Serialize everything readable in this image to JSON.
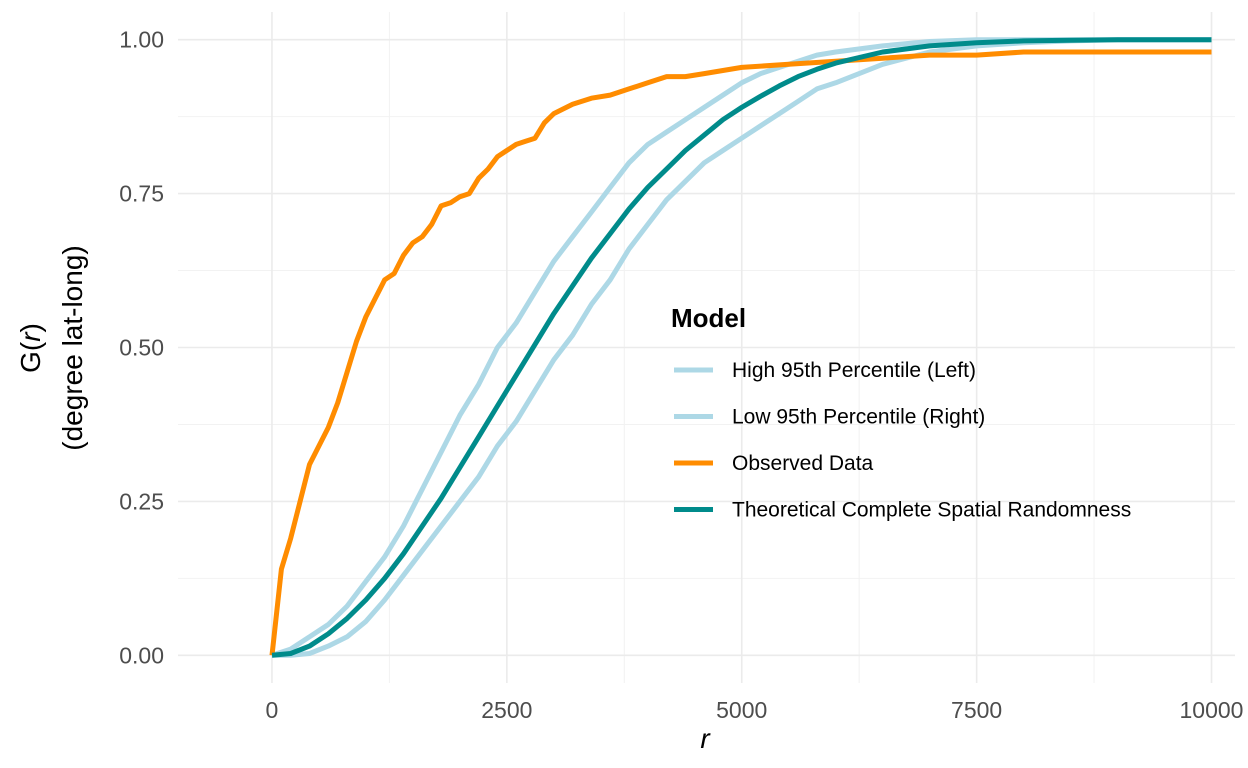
{
  "chart_data": {
    "type": "line",
    "xlabel": "r",
    "ylabel_line1_prefix": "G(",
    "ylabel_line1_var": "r",
    "ylabel_line1_suffix": ")",
    "ylabel_line2": "(degree lat-long)",
    "xlim": [
      -1000,
      10250
    ],
    "ylim": [
      -0.045,
      1.045
    ],
    "x_ticks": [
      0,
      2500,
      5000,
      7500,
      10000
    ],
    "x_tick_labels": [
      "0",
      "2500",
      "5000",
      "7500",
      "10000"
    ],
    "y_ticks": [
      0,
      0.25,
      0.5,
      0.75,
      1.0
    ],
    "y_tick_labels": [
      "0.00",
      "0.25",
      "0.50",
      "0.75",
      "1.00"
    ],
    "grid": true,
    "legend": {
      "title": "Model",
      "placement": "right",
      "entries": [
        {
          "label": "High 95th Percentile (Left)",
          "color": "#add8e6"
        },
        {
          "label": "Low 95th Percentile (Right)",
          "color": "#add8e6"
        },
        {
          "label": "Observed Data",
          "color": "#ff8c00"
        },
        {
          "label": "Theoretical Complete Spatial Randomness",
          "color": "#008b8b"
        }
      ]
    },
    "series": [
      {
        "name": "High 95th Percentile (Left)",
        "color": "#add8e6",
        "x": [
          0,
          200,
          400,
          600,
          800,
          1000,
          1200,
          1400,
          1600,
          1800,
          2000,
          2200,
          2400,
          2600,
          2800,
          3000,
          3200,
          3400,
          3600,
          3800,
          4000,
          4200,
          4400,
          4600,
          4800,
          5000,
          5200,
          5400,
          5600,
          5800,
          6000,
          6500,
          7000,
          7500,
          8000,
          8500,
          9000,
          9500,
          10000
        ],
        "y": [
          0,
          0.01,
          0.03,
          0.05,
          0.08,
          0.12,
          0.16,
          0.21,
          0.27,
          0.33,
          0.39,
          0.44,
          0.5,
          0.54,
          0.59,
          0.64,
          0.68,
          0.72,
          0.76,
          0.8,
          0.83,
          0.85,
          0.87,
          0.89,
          0.91,
          0.93,
          0.945,
          0.955,
          0.965,
          0.975,
          0.98,
          0.99,
          0.997,
          1.0,
          1.0,
          1.0,
          1.0,
          1.0,
          1.0
        ]
      },
      {
        "name": "Low 95th Percentile (Right)",
        "color": "#add8e6",
        "x": [
          0,
          200,
          400,
          600,
          800,
          1000,
          1200,
          1400,
          1600,
          1800,
          2000,
          2200,
          2400,
          2600,
          2800,
          3000,
          3200,
          3400,
          3600,
          3800,
          4000,
          4200,
          4400,
          4600,
          4800,
          5000,
          5200,
          5400,
          5600,
          5800,
          6000,
          6500,
          7000,
          7500,
          8000,
          8500,
          9000,
          9500,
          10000
        ],
        "y": [
          0,
          0,
          0.003,
          0.015,
          0.03,
          0.055,
          0.09,
          0.13,
          0.17,
          0.21,
          0.25,
          0.29,
          0.34,
          0.38,
          0.43,
          0.48,
          0.52,
          0.57,
          0.61,
          0.66,
          0.7,
          0.74,
          0.77,
          0.8,
          0.82,
          0.84,
          0.86,
          0.88,
          0.9,
          0.92,
          0.93,
          0.96,
          0.98,
          0.99,
          0.995,
          0.998,
          1.0,
          1.0,
          1.0
        ]
      },
      {
        "name": "Observed Data",
        "color": "#ff8c00",
        "x": [
          0,
          100,
          200,
          300,
          400,
          500,
          600,
          700,
          800,
          900,
          1000,
          1100,
          1200,
          1300,
          1400,
          1500,
          1600,
          1700,
          1800,
          1900,
          2000,
          2100,
          2200,
          2300,
          2400,
          2500,
          2600,
          2700,
          2800,
          2900,
          3000,
          3200,
          3400,
          3600,
          3800,
          4000,
          4200,
          4400,
          4600,
          4800,
          5000,
          5500,
          6000,
          6500,
          7000,
          7500,
          8000,
          8500,
          9000,
          9500,
          10000
        ],
        "y": [
          0,
          0.14,
          0.19,
          0.25,
          0.31,
          0.34,
          0.37,
          0.41,
          0.46,
          0.51,
          0.55,
          0.58,
          0.61,
          0.62,
          0.65,
          0.67,
          0.68,
          0.7,
          0.73,
          0.735,
          0.745,
          0.75,
          0.775,
          0.79,
          0.81,
          0.82,
          0.83,
          0.835,
          0.84,
          0.865,
          0.88,
          0.895,
          0.905,
          0.91,
          0.92,
          0.93,
          0.94,
          0.94,
          0.945,
          0.95,
          0.955,
          0.96,
          0.965,
          0.97,
          0.975,
          0.975,
          0.98,
          0.98,
          0.98,
          0.98,
          0.98
        ]
      },
      {
        "name": "Theoretical Complete Spatial Randomness",
        "color": "#008b8b",
        "x": [
          0,
          200,
          400,
          600,
          800,
          1000,
          1200,
          1400,
          1600,
          1800,
          2000,
          2200,
          2400,
          2600,
          2800,
          3000,
          3200,
          3400,
          3600,
          3800,
          4000,
          4200,
          4400,
          4600,
          4800,
          5000,
          5200,
          5400,
          5600,
          5800,
          6000,
          6500,
          7000,
          7500,
          8000,
          8500,
          9000,
          9500,
          10000
        ],
        "y": [
          0,
          0.003,
          0.015,
          0.035,
          0.06,
          0.09,
          0.125,
          0.165,
          0.21,
          0.255,
          0.305,
          0.355,
          0.405,
          0.455,
          0.505,
          0.555,
          0.6,
          0.645,
          0.685,
          0.725,
          0.76,
          0.79,
          0.82,
          0.845,
          0.87,
          0.89,
          0.908,
          0.925,
          0.94,
          0.952,
          0.962,
          0.98,
          0.99,
          0.995,
          0.998,
          0.999,
          1.0,
          1.0,
          1.0
        ]
      }
    ]
  }
}
